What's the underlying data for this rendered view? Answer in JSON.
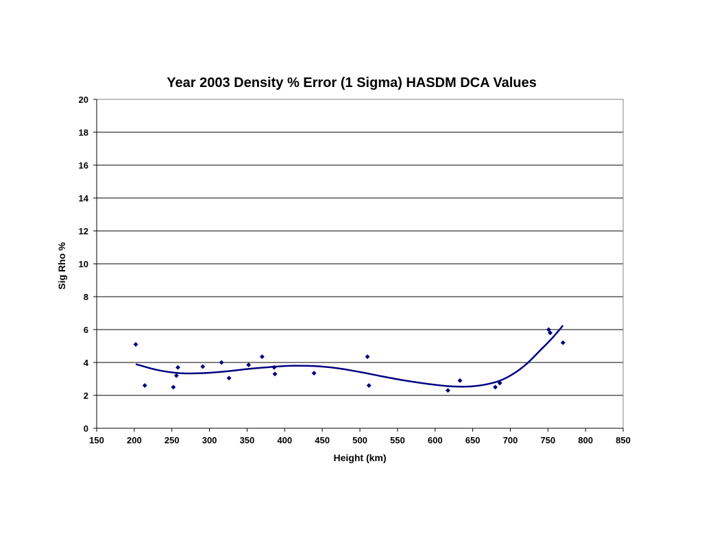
{
  "chart_data": {
    "type": "scatter",
    "title": "Year 2003 Density % Error (1 Sigma) HASDM DCA Values",
    "xlabel": "Height (km)",
    "ylabel": "Sig Rho %",
    "xlim": [
      150,
      850
    ],
    "ylim": [
      0,
      20
    ],
    "xticks": [
      "150",
      "200",
      "250",
      "300",
      "350",
      "400",
      "450",
      "500",
      "550",
      "600",
      "650",
      "700",
      "750",
      "800",
      "850"
    ],
    "yticks": [
      "0",
      "2",
      "4",
      "6",
      "8",
      "10",
      "12",
      "14",
      "16",
      "18",
      "20"
    ],
    "grid": "horizontal",
    "marker_color": "#000080",
    "trend_color": "#000080",
    "points": [
      {
        "x": 202,
        "y": 5.1
      },
      {
        "x": 214,
        "y": 2.6
      },
      {
        "x": 252,
        "y": 2.5
      },
      {
        "x": 256,
        "y": 3.2
      },
      {
        "x": 258,
        "y": 3.7
      },
      {
        "x": 291,
        "y": 3.75
      },
      {
        "x": 316,
        "y": 4.0
      },
      {
        "x": 326,
        "y": 3.05
      },
      {
        "x": 352,
        "y": 3.85
      },
      {
        "x": 370,
        "y": 4.35
      },
      {
        "x": 386,
        "y": 3.7
      },
      {
        "x": 387,
        "y": 3.3
      },
      {
        "x": 439,
        "y": 3.35
      },
      {
        "x": 510,
        "y": 4.35
      },
      {
        "x": 512,
        "y": 2.6
      },
      {
        "x": 617,
        "y": 2.3
      },
      {
        "x": 633,
        "y": 2.9
      },
      {
        "x": 680,
        "y": 2.5
      },
      {
        "x": 686,
        "y": 2.75
      },
      {
        "x": 751,
        "y": 6.0
      },
      {
        "x": 753,
        "y": 5.8
      },
      {
        "x": 770,
        "y": 5.2
      }
    ],
    "trendline": {
      "type": "polynomial",
      "x": [
        202,
        230,
        260,
        290,
        320,
        350,
        380,
        410,
        440,
        470,
        500,
        530,
        560,
        590,
        620,
        650,
        680,
        700,
        720,
        740,
        755,
        770
      ],
      "y": [
        3.9,
        3.55,
        3.35,
        3.35,
        3.45,
        3.6,
        3.72,
        3.8,
        3.78,
        3.65,
        3.42,
        3.15,
        2.9,
        2.7,
        2.55,
        2.55,
        2.8,
        3.2,
        3.85,
        4.75,
        5.45,
        6.25
      ]
    }
  }
}
